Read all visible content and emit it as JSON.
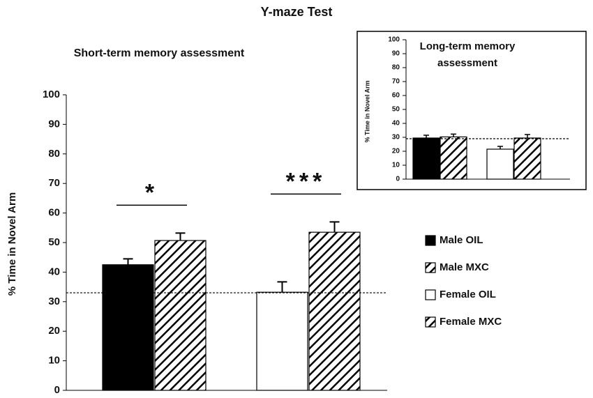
{
  "chart_data": [
    {
      "type": "bar",
      "title": "Y-maze Test",
      "subtitle": "Short-term memory assessment",
      "y_label": "% Time in Novel Arm",
      "categories": [
        null,
        null
      ],
      "series": [
        {
          "name": "Male OIL",
          "color": "#000000",
          "pattern": "solid",
          "values": [
            42.5,
            null
          ],
          "errors": [
            2,
            null
          ]
        },
        {
          "name": "Male MXC",
          "color": "#000000",
          "pattern": "hatch",
          "values": [
            50.7,
            null
          ],
          "errors": [
            2.5,
            null
          ]
        },
        {
          "name": "Female OIL",
          "color": "#ffffff",
          "pattern": "solid",
          "values": [
            null,
            33.2
          ],
          "errors": [
            null,
            3.5
          ]
        },
        {
          "name": "Female MXC",
          "color": "#000000",
          "pattern": "hatch",
          "values": [
            null,
            53.5
          ],
          "errors": [
            null,
            3.5
          ]
        }
      ],
      "annotations": [
        "*",
        "***"
      ],
      "reference_line": 33,
      "ylim": [
        0,
        100
      ],
      "yticks": [
        0,
        10,
        20,
        30,
        40,
        50,
        60,
        70,
        80,
        90,
        100
      ],
      "legend": "right"
    },
    {
      "type": "bar",
      "title": "Long-term memory assessment",
      "y_label": "% Time in Novel Arm",
      "categories": [
        null,
        null
      ],
      "series": [
        {
          "name": "Male OIL",
          "color": "#000000",
          "pattern": "solid",
          "values": [
            29.5,
            null
          ],
          "errors": [
            2,
            null
          ]
        },
        {
          "name": "Male MXC",
          "color": "#000000",
          "pattern": "hatch",
          "values": [
            30.3,
            null
          ],
          "errors": [
            2,
            null
          ]
        },
        {
          "name": "Female OIL",
          "color": "#ffffff",
          "pattern": "solid",
          "values": [
            null,
            21.5
          ],
          "errors": [
            null,
            2
          ]
        },
        {
          "name": "Female MXC",
          "color": "#000000",
          "pattern": "hatch",
          "values": [
            null,
            29.5
          ],
          "errors": [
            null,
            2.5
          ]
        }
      ],
      "reference_line": 29,
      "ylim": [
        0,
        100
      ],
      "yticks": [
        0,
        10,
        20,
        30,
        40,
        50,
        60,
        70,
        80,
        90,
        100
      ]
    }
  ]
}
